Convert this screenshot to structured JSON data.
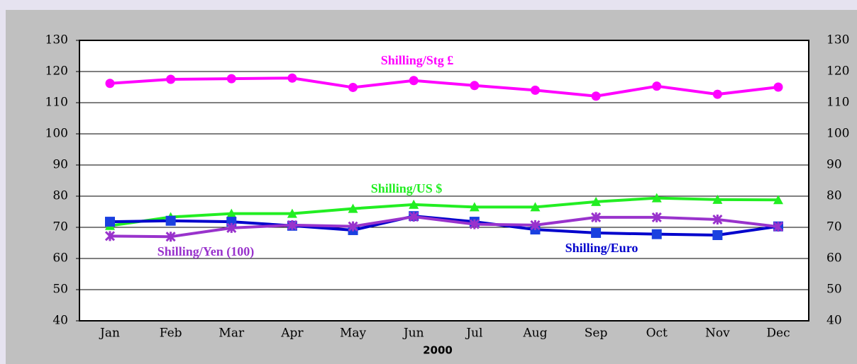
{
  "chart_data": {
    "type": "line",
    "x_label": "2000",
    "categories": [
      "Jan",
      "Feb",
      "Mar",
      "Apr",
      "May",
      "Jun",
      "Jul",
      "Aug",
      "Sep",
      "Oct",
      "Nov",
      "Dec"
    ],
    "series": [
      {
        "name": "Shilling/Stg £",
        "color": "#ff00ff",
        "marker": "circle",
        "values": [
          116.2,
          117.5,
          117.7,
          117.9,
          114.9,
          117.1,
          115.5,
          114.0,
          112.1,
          115.3,
          112.7,
          115.0
        ]
      },
      {
        "name": "Shilling/US $",
        "color": "#22ee22",
        "marker": "triangle",
        "values": [
          70.5,
          73.3,
          74.4,
          74.4,
          76.0,
          77.3,
          76.5,
          76.5,
          78.2,
          79.4,
          78.9,
          78.8
        ]
      },
      {
        "name": "Shilling/Euro",
        "color": "#0000cc",
        "marker": "square",
        "values": [
          71.8,
          72.1,
          71.8,
          70.5,
          69.1,
          73.6,
          71.8,
          69.3,
          68.2,
          67.8,
          67.5,
          70.3
        ]
      },
      {
        "name": "Shilling/Yen (100)",
        "color": "#9933cc",
        "marker": "star",
        "values": [
          67.2,
          67.0,
          69.8,
          70.7,
          70.3,
          73.4,
          71.0,
          70.7,
          73.2,
          73.2,
          72.5,
          70.2
        ]
      }
    ],
    "ylim": [
      40,
      130
    ],
    "yticks": [
      40,
      50,
      60,
      70,
      80,
      90,
      100,
      110,
      120,
      130
    ],
    "y2lim": [
      40,
      130
    ],
    "y2ticks": [
      40,
      50,
      60,
      70,
      80,
      90,
      100,
      110,
      120,
      130
    ],
    "grid": true
  }
}
